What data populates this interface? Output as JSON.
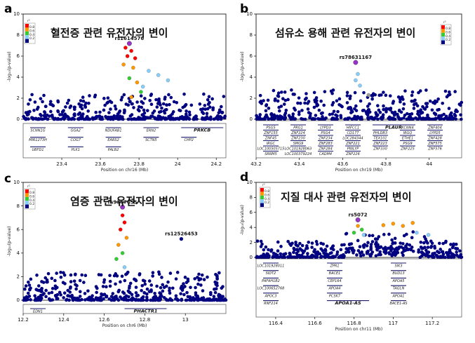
{
  "panels": [
    {
      "label": "a",
      "title": "혈전증 관련 유전자의 변이",
      "lead_snp": "rs1614576",
      "secondary_snp": "",
      "xlabel": "Position on chr16 (Mb)",
      "ylabel": "-log₁₀(p-value)",
      "genes": [
        "SCNN1G",
        "GGA2",
        "NDUFAB1",
        "ERN2",
        "PRKCB",
        "MIR1273H",
        "COG7",
        "EARS2",
        "SCTN5",
        "CHP2",
        "UBFD1",
        "PLK1",
        "PALB2"
      ],
      "bold_gene": "PRKCB"
    },
    {
      "label": "b",
      "title": "섬유소 용해 관련 유전자의 변이",
      "lead_snp": "rs78631167",
      "secondary_snp": "",
      "xlabel": "Position on chr19 (Mb)",
      "ylabel": "-log₁₀(p-value)",
      "genes": [
        "PSG5",
        "PRG1",
        "LYPD3",
        "HIFCC1",
        "PLAUR",
        "KCNN4",
        "ZNF404",
        "ZNF155",
        "ZNF224",
        "PSG4",
        "CD177",
        "PHLDB3",
        "IRGQ",
        "LYPD5",
        "ZNF45",
        "ZNF230",
        "ZNF234",
        "LOC284344",
        "TEX101",
        "ETHE1",
        "ZNF428",
        "IRGC",
        "SMG9",
        "ZNF283",
        "ZNF221",
        "ZNF223",
        "PSG9",
        "ZNF575",
        "LOC100505715",
        "LOC101928063",
        "ZNF284",
        "PINLYP",
        "ZNF330",
        "ZNF225",
        "ZNF576",
        "SRRM5",
        "LOC100379224",
        "CADM4",
        "ZNF226"
      ],
      "bold_gene": "PLAUR"
    },
    {
      "label": "c",
      "title": "염증 관련 유전자의 변이",
      "lead_snp": "rs9357455",
      "secondary_snp": "rs12526453",
      "xlabel": "Position on chr6 (Mb)",
      "ylabel": "-log₁₀(p-value)",
      "genes": [
        "EDN1",
        "PHACTR1"
      ],
      "bold_gene": "PHACTR1"
    },
    {
      "label": "d",
      "title": "지질 대사 관련 유전자의 변이",
      "lead_snp": "rs5072",
      "secondary_snp": "",
      "xlabel": "Position on chr11 (Mb)",
      "ylabel": "-log₁₀(p-value)",
      "genes": [
        "LOC101928011",
        "ZPR1",
        "SIK3",
        "SIDT2",
        "BACE1",
        "BUD13",
        "PAFAH1B2",
        "CEP164",
        "APOA5",
        "LOC100652768",
        "APOA4",
        "TAGLN",
        "APOC3",
        "PCSK7",
        "APOA1",
        "RNF214",
        "APOA1-AS",
        "BACE1-AS"
      ],
      "bold_gene": "APOA1-AS"
    }
  ],
  "legend": {
    "title": "r²",
    "levels": [
      "0.8",
      "0.6",
      "0.4",
      "0.2"
    ],
    "colors": [
      "#ff0000",
      "#ff9900",
      "#33cc33",
      "#87cefa",
      "#000080"
    ],
    "lead_color": "#9933cc"
  },
  "chart_data": [
    {
      "type": "scatter",
      "title": "혈전증 관련 유전자의 변이",
      "xlabel": "Position on chr16 (Mb)",
      "ylabel": "-log10(p-value)",
      "xlim": [
        23.2,
        24.25
      ],
      "ylim": [
        0,
        10
      ],
      "xticks": [
        "23.4",
        "23.6",
        "23.8",
        "24",
        "24.2"
      ],
      "yticks": [
        "0",
        "2",
        "4",
        "6",
        "8",
        "10"
      ],
      "lead": {
        "name": "rs1614576",
        "x": 23.75,
        "y": 7.2
      },
      "highlight": [
        {
          "x": 23.73,
          "y": 6.8,
          "r2": "red"
        },
        {
          "x": 23.76,
          "y": 6.5,
          "r2": "red"
        },
        {
          "x": 23.74,
          "y": 6.0,
          "r2": "red"
        },
        {
          "x": 23.78,
          "y": 5.8,
          "r2": "red"
        },
        {
          "x": 23.72,
          "y": 5.2,
          "r2": "orange"
        },
        {
          "x": 23.77,
          "y": 4.9,
          "r2": "orange"
        },
        {
          "x": 23.75,
          "y": 3.9,
          "r2": "green"
        },
        {
          "x": 23.79,
          "y": 3.5,
          "r2": "orange"
        },
        {
          "x": 23.81,
          "y": 2.6,
          "r2": "green"
        },
        {
          "x": 23.76,
          "y": 2.1,
          "r2": "orange"
        },
        {
          "x": 23.85,
          "y": 4.6,
          "r2": "lightblue"
        },
        {
          "x": 23.9,
          "y": 4.2,
          "r2": "lightblue"
        },
        {
          "x": 23.95,
          "y": 3.7,
          "r2": "lightblue"
        },
        {
          "x": 23.82,
          "y": 3.1,
          "r2": "lightblue"
        }
      ]
    },
    {
      "type": "scatter",
      "title": "섬유소 용해 관련 유전자의 변이",
      "xlabel": "Position on chr19 (Mb)",
      "ylabel": "-log10(p-value)",
      "xlim": [
        43.2,
        44.15
      ],
      "ylim": [
        0,
        10
      ],
      "xticks": [
        "43.2",
        "43.4",
        "43.6",
        "43.8",
        "44"
      ],
      "yticks": [
        "0",
        "2",
        "4",
        "6",
        "8",
        "10"
      ],
      "lead": {
        "name": "rs78631167",
        "x": 43.66,
        "y": 5.4
      },
      "highlight": [
        {
          "x": 43.67,
          "y": 4.3,
          "r2": "lightblue"
        },
        {
          "x": 43.66,
          "y": 3.7,
          "r2": "lightblue"
        },
        {
          "x": 43.68,
          "y": 3.2,
          "r2": "lightblue"
        },
        {
          "x": 43.72,
          "y": 2.3,
          "r2": "gray"
        }
      ]
    },
    {
      "type": "scatter",
      "title": "염증 관련 유전자의 변이",
      "xlabel": "Position on chr6 (Mb)",
      "ylabel": "-log10(p-value)",
      "xlim": [
        12.2,
        13.2
      ],
      "ylim": [
        0,
        10
      ],
      "xticks": [
        "12.2",
        "12.4",
        "12.6",
        "12.8",
        "13"
      ],
      "yticks": [
        "0",
        "2",
        "4",
        "6",
        "8",
        "10"
      ],
      "lead": {
        "name": "rs9357455",
        "x": 12.69,
        "y": 7.9
      },
      "secondary": {
        "name": "rs12526453",
        "x": 12.98,
        "y": 5.2
      },
      "highlight": [
        {
          "x": 12.69,
          "y": 7.2,
          "r2": "red"
        },
        {
          "x": 12.7,
          "y": 6.6,
          "r2": "red"
        },
        {
          "x": 12.68,
          "y": 6.0,
          "r2": "red"
        },
        {
          "x": 12.71,
          "y": 5.3,
          "r2": "orange"
        },
        {
          "x": 12.67,
          "y": 4.7,
          "r2": "orange"
        },
        {
          "x": 12.69,
          "y": 4.0,
          "r2": "green"
        },
        {
          "x": 12.66,
          "y": 3.5,
          "r2": "green"
        },
        {
          "x": 12.7,
          "y": 2.8,
          "r2": "lightblue"
        }
      ]
    },
    {
      "type": "scatter",
      "title": "지질 대사 관련 유전자의 변이",
      "xlabel": "Position on chr11 (Mb)",
      "ylabel": "-log10(p-value)",
      "xlim": [
        116.3,
        117.35
      ],
      "ylim": [
        0,
        10
      ],
      "xticks": [
        "116.4",
        "116.6",
        "116.8",
        "117",
        "117.2"
      ],
      "yticks": [
        "0",
        "2",
        "4",
        "6",
        "8",
        "10"
      ],
      "lead": {
        "name": "rs5072",
        "x": 116.82,
        "y": 5.0
      },
      "highlight": [
        {
          "x": 116.82,
          "y": 4.2,
          "r2": "orange"
        },
        {
          "x": 116.84,
          "y": 3.7,
          "r2": "green"
        },
        {
          "x": 116.8,
          "y": 3.3,
          "r2": "green"
        },
        {
          "x": 116.85,
          "y": 3.0,
          "r2": "lightblue"
        },
        {
          "x": 116.95,
          "y": 4.3,
          "r2": "orange"
        },
        {
          "x": 117.0,
          "y": 4.5,
          "r2": "orange"
        },
        {
          "x": 117.05,
          "y": 4.2,
          "r2": "orange"
        },
        {
          "x": 117.1,
          "y": 4.6,
          "r2": "orange"
        },
        {
          "x": 117.12,
          "y": 3.3,
          "r2": "lightblue"
        },
        {
          "x": 117.18,
          "y": 3.0,
          "r2": "lightblue"
        }
      ]
    }
  ]
}
